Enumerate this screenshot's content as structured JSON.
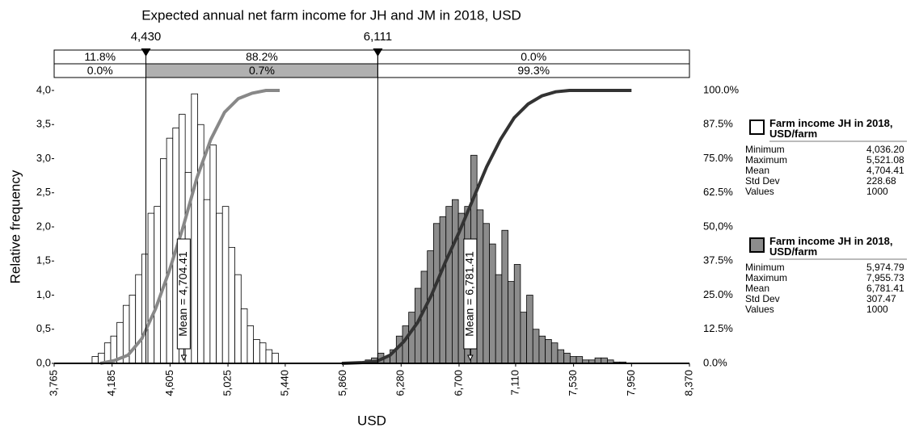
{
  "chart_data": {
    "type": "histogram",
    "title": "Expected annual net farm income for JH and JM in 2018, USD",
    "xlabel": "USD",
    "ylabel": "Relative frequency",
    "xlim": [
      3765,
      8370
    ],
    "xticks": [
      {
        "value": 3765,
        "label": "3,765"
      },
      {
        "value": 4185,
        "label": "4,185"
      },
      {
        "value": 4605,
        "label": "4,605"
      },
      {
        "value": 5025,
        "label": "5,025"
      },
      {
        "value": 5440,
        "label": "5,440"
      },
      {
        "value": 5860,
        "label": "5,860"
      },
      {
        "value": 6280,
        "label": "6,280"
      },
      {
        "value": 6700,
        "label": "6,700"
      },
      {
        "value": 7110,
        "label": "7,110"
      },
      {
        "value": 7530,
        "label": "7,530"
      },
      {
        "value": 7950,
        "label": "7,950"
      },
      {
        "value": 8370,
        "label": "8,370"
      }
    ],
    "ylim": [
      0,
      4
    ],
    "yticks": [
      {
        "value": 0,
        "label": "0,0"
      },
      {
        "value": 0.5,
        "label": "0,5"
      },
      {
        "value": 1,
        "label": "1,0"
      },
      {
        "value": 1.5,
        "label": "1,5"
      },
      {
        "value": 2,
        "label": "2,0"
      },
      {
        "value": 2.5,
        "label": "2,5"
      },
      {
        "value": 3,
        "label": "3,0"
      },
      {
        "value": 3.5,
        "label": "3,5"
      },
      {
        "value": 4,
        "label": "4,0"
      }
    ],
    "y2lim": [
      0,
      100
    ],
    "y2ticks": [
      {
        "value": 0,
        "label": "0.0%"
      },
      {
        "value": 12.5,
        "label": "12.5%"
      },
      {
        "value": 25,
        "label": "25.0%"
      },
      {
        "value": 37.5,
        "label": "37.5%"
      },
      {
        "value": 50,
        "label": "50,0%"
      },
      {
        "value": 62.5,
        "label": "62.5%"
      },
      {
        "value": 75,
        "label": "75.0%"
      },
      {
        "value": 87.5,
        "label": "87.5%"
      },
      {
        "value": 100,
        "label": "100.0%"
      }
    ],
    "series": [
      {
        "name": "Farm income JH in 2018, USD/farm",
        "color": "#ffffff",
        "bins": [
          4040,
          4085,
          4130,
          4175,
          4220,
          4265,
          4310,
          4355,
          4400,
          4445,
          4490,
          4535,
          4580,
          4625,
          4670,
          4715,
          4760,
          4805,
          4850,
          4895,
          4940,
          4985,
          5030,
          5075,
          5120,
          5165,
          5210,
          5255,
          5300,
          5345,
          5390
        ],
        "values": [
          0.1,
          0.15,
          0.3,
          0.4,
          0.6,
          0.85,
          1.0,
          1.3,
          1.6,
          2.2,
          2.3,
          3.0,
          3.3,
          3.45,
          3.65,
          2.8,
          3.95,
          3.5,
          2.4,
          3.2,
          2.2,
          2.3,
          1.7,
          1.3,
          0.8,
          0.55,
          0.35,
          0.3,
          0.2,
          0.15
        ],
        "mean": 4704.41,
        "mean_label": "Mean = 4,704.41",
        "stats": [
          [
            "Minimum",
            "4,036.20"
          ],
          [
            "Maximum",
            "5,521.08"
          ],
          [
            "Mean",
            "4,704.41"
          ],
          [
            "Std Dev",
            "228.68"
          ],
          [
            "Values",
            "1000"
          ]
        ]
      },
      {
        "name": "Farm income JH in 2018, USD/farm",
        "color": "#8c8c8c",
        "bins": [
          5975,
          6020,
          6065,
          6110,
          6155,
          6200,
          6245,
          6290,
          6335,
          6380,
          6425,
          6470,
          6515,
          6560,
          6605,
          6650,
          6695,
          6740,
          6785,
          6830,
          6875,
          6920,
          6965,
          7010,
          7055,
          7100,
          7145,
          7190,
          7235,
          7280,
          7325,
          7370,
          7415,
          7460,
          7505,
          7550,
          7595,
          7640,
          7685,
          7730,
          7775,
          7820,
          7865,
          7910,
          7955
        ],
        "values": [
          0.02,
          0.05,
          0.08,
          0.15,
          0.1,
          0.2,
          0.4,
          0.55,
          0.75,
          1.1,
          1.35,
          1.65,
          2.05,
          2.15,
          2.3,
          2.4,
          2.2,
          2.3,
          3.05,
          2.25,
          2.05,
          1.75,
          1.3,
          1.95,
          1.2,
          1.45,
          0.75,
          1.0,
          0.5,
          0.4,
          0.35,
          0.3,
          0.2,
          0.15,
          0.1,
          0.1,
          0.05,
          0.05,
          0.08,
          0.08,
          0.05,
          0.02,
          0.02,
          0.0
        ],
        "mean": 6781.41,
        "mean_label": "Mean = 6,781.41",
        "stats": [
          [
            "Minimum",
            "5,974.79"
          ],
          [
            "Maximum",
            "7,955.73"
          ],
          [
            "Mean",
            "6,781.41"
          ],
          [
            "Std Dev",
            "307.47"
          ],
          [
            "Values",
            "1000"
          ]
        ]
      }
    ],
    "cumulative": [
      {
        "color": "#888888",
        "axis": "y2",
        "x": [
          4100,
          4200,
          4300,
          4400,
          4500,
          4600,
          4700,
          4800,
          4900,
          5000,
          5100,
          5200,
          5300,
          5400
        ],
        "values": [
          0,
          1,
          3,
          9,
          20,
          34,
          50,
          68,
          82,
          92,
          97,
          99,
          100,
          100
        ]
      },
      {
        "color": "#333333",
        "axis": "y2",
        "x": [
          5850,
          6000,
          6100,
          6200,
          6300,
          6400,
          6500,
          6600,
          6700,
          6800,
          6900,
          7000,
          7100,
          7200,
          7300,
          7400,
          7500,
          7950
        ],
        "values": [
          0,
          0.3,
          0.7,
          3,
          8,
          15,
          25,
          37,
          48,
          60,
          72,
          82,
          90,
          95,
          98,
          99.5,
          100,
          100
        ]
      }
    ],
    "delimiters": [
      {
        "value": 4430,
        "label": "4,430"
      },
      {
        "value": 6111,
        "label": "6,111"
      }
    ],
    "band_rows": [
      {
        "values": [
          11.8,
          88.2,
          0.0
        ],
        "value_labels": [
          "11.8%",
          "88.2%",
          "0.0%"
        ]
      },
      {
        "values": [
          0.0,
          0.7,
          99.3
        ],
        "value_labels": [
          "0.0%",
          "0.7%",
          "99.3%"
        ]
      }
    ]
  }
}
